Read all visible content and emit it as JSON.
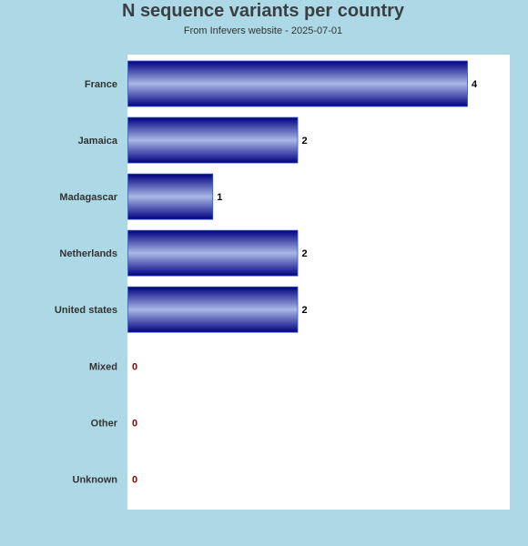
{
  "chart_data": {
    "type": "bar",
    "orientation": "horizontal",
    "title": "N sequence variants per country",
    "subtitle": "From Infevers website - 2025-07-01",
    "categories": [
      "France",
      "Jamaica",
      "Madagascar",
      "Netherlands",
      "United states",
      "Mixed",
      "Other",
      "Unknown"
    ],
    "values": [
      4,
      2,
      1,
      2,
      2,
      0,
      0,
      0
    ],
    "xlim": [
      0,
      4.5
    ],
    "grid": false,
    "legend": "none",
    "colors": {
      "background": "#add8e6",
      "plot_background": "#ffffff",
      "bar_edge": "#000080",
      "bar_highlight": "#a9b8e6",
      "value_label": "#000000",
      "zero_value_label": "#8b0000",
      "category_label": "#333333",
      "title": "#3a3f44"
    }
  }
}
